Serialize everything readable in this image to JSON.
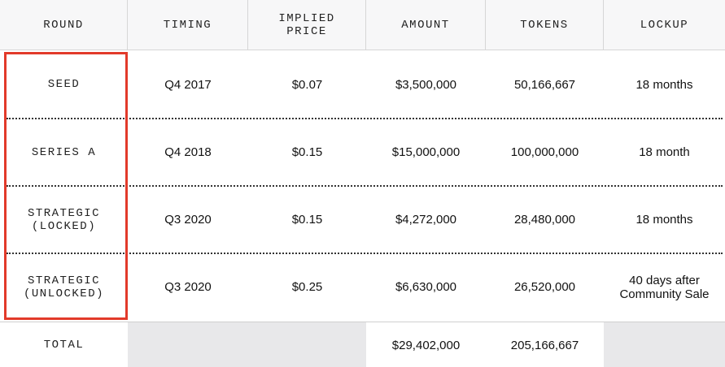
{
  "table": {
    "headers": [
      "ROUND",
      "TIMING",
      "IMPLIED PRICE",
      "AMOUNT",
      "TOKENS",
      "LOCKUP"
    ],
    "rows": [
      [
        "SEED",
        "Q4 2017",
        "$0.07",
        "$3,500,000",
        "50,166,667",
        "18 months"
      ],
      [
        "SERIES A",
        "Q4 2018",
        "$0.15",
        "$15,000,000",
        "100,000,000",
        "18 month"
      ],
      [
        "STRATEGIC (LOCKED)",
        "Q3 2020",
        "$0.15",
        "$4,272,000",
        "28,480,000",
        "18 months"
      ],
      [
        "STRATEGIC (UNLOCKED)",
        "Q3 2020",
        "$0.25",
        "$6,630,000",
        "26,520,000",
        "40 days after Community Sale"
      ]
    ],
    "total": {
      "label": "TOTAL",
      "amount": "$29,402,000",
      "tokens": "205,166,667"
    }
  }
}
